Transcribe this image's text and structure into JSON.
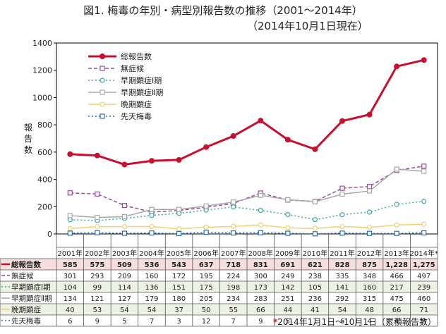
{
  "title": "図1. 梅毒の年別・病型別報告数の推移（2001～2014年）",
  "subtitle": "（2014年10月1日現在）",
  "footnote_mark": "*",
  "footnote": "2014年1月1日～10月1日（累積報告数）",
  "chart_data": {
    "type": "line",
    "ylabel": "報告数",
    "ylim": [
      0,
      1400
    ],
    "yticks": [
      0,
      200,
      400,
      600,
      800,
      1000,
      1200,
      1400
    ],
    "grid": false,
    "legend_position": "top-left",
    "categories": [
      "2001年",
      "2002年",
      "2003年",
      "2004年",
      "2005年",
      "2006年",
      "2007年",
      "2008年",
      "2009年",
      "2010年",
      "2011年",
      "2012年",
      "2013年",
      "2014年*"
    ],
    "series": [
      {
        "name": "総報告数",
        "color": "#c8102e",
        "style": "solid",
        "marker": "circle",
        "width": 3,
        "values": [
          585,
          575,
          509,
          536,
          543,
          637,
          718,
          831,
          691,
          621,
          828,
          875,
          1228,
          1275
        ],
        "labels": [
          "585",
          "575",
          "509",
          "536",
          "543",
          "637",
          "718",
          "831",
          "691",
          "621",
          "828",
          "875",
          "1,228",
          "1,275"
        ]
      },
      {
        "name": "無症候",
        "color": "#9c4a9c",
        "style": "dashed",
        "marker": "square",
        "width": 1.5,
        "values": [
          301,
          293,
          209,
          160,
          172,
          195,
          224,
          300,
          249,
          238,
          335,
          348,
          466,
          497
        ],
        "labels": [
          "301",
          "293",
          "209",
          "160",
          "172",
          "195",
          "224",
          "300",
          "249",
          "238",
          "335",
          "348",
          "466",
          "497"
        ]
      },
      {
        "name": "早期顕症Ⅰ期",
        "color": "#3aa8a8",
        "style": "dotted",
        "marker": "circle",
        "width": 1.5,
        "values": [
          104,
          99,
          114,
          136,
          151,
          175,
          198,
          173,
          142,
          105,
          141,
          160,
          217,
          239
        ],
        "labels": [
          "104",
          "99",
          "114",
          "136",
          "151",
          "175",
          "198",
          "173",
          "142",
          "105",
          "141",
          "160",
          "217",
          "239"
        ]
      },
      {
        "name": "早期顕症Ⅱ期",
        "color": "#a8a8a8",
        "style": "solid",
        "marker": "square",
        "width": 1.5,
        "values": [
          134,
          121,
          127,
          179,
          180,
          205,
          234,
          283,
          251,
          236,
          292,
          315,
          475,
          460
        ],
        "labels": [
          "134",
          "121",
          "127",
          "179",
          "180",
          "205",
          "234",
          "283",
          "251",
          "236",
          "292",
          "315",
          "475",
          "460"
        ]
      },
      {
        "name": "晩期顕症",
        "color": "#f0d070",
        "style": "solid",
        "marker": "circle",
        "width": 1.5,
        "values": [
          40,
          53,
          54,
          54,
          37,
          50,
          55,
          66,
          44,
          41,
          54,
          48,
          66,
          71
        ],
        "labels": [
          "40",
          "53",
          "54",
          "54",
          "37",
          "50",
          "55",
          "66",
          "44",
          "41",
          "54",
          "48",
          "66",
          "71"
        ]
      },
      {
        "name": "先天梅毒",
        "color": "#2870b0",
        "style": "dotted",
        "marker": "square",
        "width": 1.5,
        "values": [
          6,
          9,
          5,
          7,
          3,
          12,
          7,
          9,
          5,
          1,
          6,
          4,
          4,
          8
        ],
        "labels": [
          "6",
          "9",
          "5",
          "7",
          "3",
          "12",
          "7",
          "9",
          "5",
          "1",
          "6",
          "4",
          "4",
          "8"
        ]
      }
    ]
  }
}
